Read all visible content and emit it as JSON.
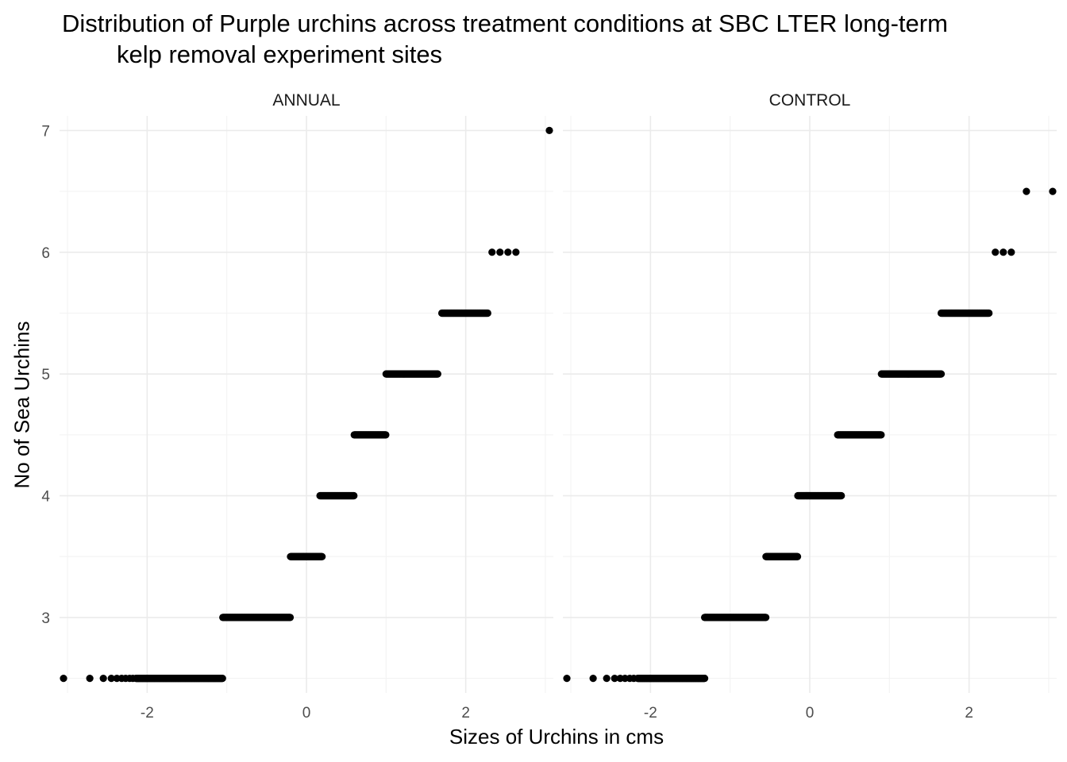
{
  "chart_data": {
    "type": "scatter",
    "title": "Distribution of Purple urchins across treatment conditions at SBC LTER long-term kelp removal experiment sites",
    "title_lines": [
      "Distribution of Purple urchins across treatment conditions at SBC LTER long-term",
      "kelp removal experiment sites"
    ],
    "xlabel": "Sizes of Urchins in cms",
    "ylabel": "No of Sea Urchins",
    "xlim": [
      -3.1,
      3.1
    ],
    "ylim": [
      2.38,
      7.12
    ],
    "x_ticks": [
      -2,
      0,
      2
    ],
    "x_tick_labels": [
      "-2",
      "0",
      "2"
    ],
    "y_ticks": [
      3,
      4,
      5,
      6,
      7
    ],
    "y_tick_labels": [
      "3",
      "4",
      "5",
      "6",
      "7"
    ],
    "grid": true,
    "legend": "none",
    "point_color": "#000000",
    "panels": [
      {
        "name": "ANNUAL",
        "points": [
          [
            -3.05,
            2.5
          ],
          [
            -2.72,
            2.5
          ],
          [
            -2.55,
            2.5
          ],
          [
            -2.45,
            2.5
          ],
          [
            -2.38,
            2.5
          ],
          [
            -2.32,
            2.5
          ],
          [
            -2.27,
            2.5
          ],
          [
            -2.22,
            2.5
          ],
          [
            -2.18,
            2.5
          ],
          [
            3.05,
            7.0
          ]
        ],
        "runs": [
          {
            "y": 2.5,
            "x_from": -2.14,
            "x_to": -1.05
          },
          {
            "y": 3.0,
            "x_from": -1.05,
            "x_to": -0.2
          },
          {
            "y": 3.5,
            "x_from": -0.2,
            "x_to": 0.2
          },
          {
            "y": 4.0,
            "x_from": 0.17,
            "x_to": 0.6
          },
          {
            "y": 4.5,
            "x_from": 0.6,
            "x_to": 1.0
          },
          {
            "y": 5.0,
            "x_from": 1.0,
            "x_to": 1.65
          },
          {
            "y": 5.5,
            "x_from": 1.7,
            "x_to": 2.28
          },
          {
            "y": 6.0,
            "x_from": 2.33,
            "x_to": 2.7,
            "step": 0.1
          }
        ]
      },
      {
        "name": "CONTROL",
        "points": [
          [
            -3.05,
            2.5
          ],
          [
            -2.72,
            2.5
          ],
          [
            -2.55,
            2.5
          ],
          [
            -2.45,
            2.5
          ],
          [
            -2.38,
            2.5
          ],
          [
            -2.32,
            2.5
          ],
          [
            -2.26,
            2.5
          ],
          [
            -2.21,
            2.5
          ],
          [
            2.72,
            6.5
          ],
          [
            3.05,
            6.5
          ]
        ],
        "runs": [
          {
            "y": 2.5,
            "x_from": -2.16,
            "x_to": -1.32
          },
          {
            "y": 3.0,
            "x_from": -1.32,
            "x_to": -0.55
          },
          {
            "y": 3.5,
            "x_from": -0.55,
            "x_to": -0.15
          },
          {
            "y": 4.0,
            "x_from": -0.15,
            "x_to": 0.4
          },
          {
            "y": 4.5,
            "x_from": 0.35,
            "x_to": 0.9
          },
          {
            "y": 5.0,
            "x_from": 0.9,
            "x_to": 1.65
          },
          {
            "y": 5.5,
            "x_from": 1.65,
            "x_to": 2.25
          },
          {
            "y": 6.0,
            "x_from": 2.33,
            "x_to": 2.53,
            "step": 0.1
          }
        ]
      }
    ]
  }
}
